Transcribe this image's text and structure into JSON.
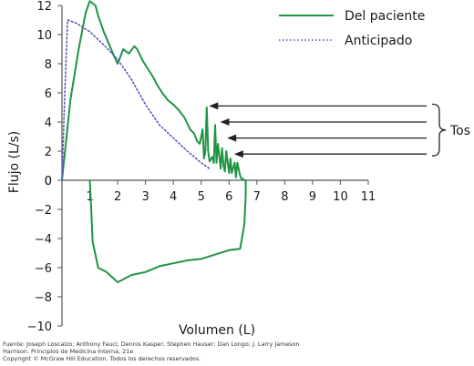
{
  "chart_data": {
    "type": "line",
    "xlabel": "Volumen (L)",
    "ylabel": "Flujo (L/s)",
    "xlim": [
      0,
      11
    ],
    "ylim": [
      -10,
      12
    ],
    "x_ticks": [
      1,
      2,
      3,
      4,
      5,
      6,
      7,
      8,
      9,
      10,
      11
    ],
    "y_ticks": [
      -10,
      -8,
      -6,
      -4,
      -2,
      0,
      2,
      4,
      6,
      8,
      10,
      12
    ],
    "grid": false,
    "legend_position": "top-right",
    "series": [
      {
        "name": "Del paciente",
        "color": "#1f9444",
        "style": "solid",
        "x": [
          0,
          0.3,
          0.6,
          0.85,
          1.0,
          1.2,
          1.3,
          1.5,
          1.7,
          1.9,
          2.0,
          2.2,
          2.4,
          2.6,
          2.7,
          2.9,
          3.1,
          3.3,
          3.4,
          3.6,
          3.8,
          4.0,
          4.2,
          4.4,
          4.6,
          4.75,
          4.85,
          4.95,
          5.05,
          5.1,
          5.15,
          5.2,
          5.25,
          5.3,
          5.4,
          5.45,
          5.5,
          5.55,
          5.6,
          5.7,
          5.75,
          5.8,
          5.85,
          5.9,
          6.0,
          6.05,
          6.1,
          6.2,
          6.25,
          6.3,
          6.4,
          6.45,
          6.5,
          6.55,
          6.6,
          6.6,
          6.55,
          6.4,
          6.0,
          5.5,
          5.0,
          4.5,
          4.0,
          3.5,
          3.0,
          2.5,
          2.0,
          1.6,
          1.3,
          1.1,
          1.05,
          1.0
        ],
        "y": [
          0,
          5.5,
          9.0,
          11.5,
          12.3,
          12.0,
          11.3,
          10.2,
          9.3,
          8.4,
          8.0,
          9.0,
          8.7,
          9.2,
          9.0,
          8.2,
          7.6,
          7.0,
          6.6,
          6.0,
          5.5,
          5.2,
          4.8,
          4.3,
          3.5,
          3.2,
          2.7,
          2.5,
          3.5,
          1.5,
          2.0,
          5.0,
          2.0,
          1.3,
          1.6,
          1.2,
          3.8,
          1.2,
          2.5,
          0.8,
          2.2,
          1.0,
          0.6,
          2.0,
          0.5,
          1.5,
          0.5,
          1.2,
          0.2,
          1.2,
          0.3,
          0.1,
          0.1,
          0.0,
          0.0,
          -1.0,
          -3.0,
          -4.7,
          -4.8,
          -5.1,
          -5.4,
          -5.5,
          -5.7,
          -5.9,
          -6.3,
          -6.5,
          -7.0,
          -6.3,
          -6.0,
          -4.2,
          -2.0,
          0.0
        ]
      },
      {
        "name": "Anticipado",
        "color": "#5c54c4",
        "style": "dotted",
        "x": [
          0,
          0.1,
          0.2,
          0.5,
          1.0,
          1.5,
          2.0,
          2.5,
          3.0,
          3.5,
          4.0,
          4.5,
          5.0,
          5.3
        ],
        "y": [
          0,
          6.0,
          11.0,
          10.8,
          10.2,
          9.3,
          8.3,
          6.9,
          5.2,
          3.8,
          2.9,
          2.0,
          1.2,
          0.8
        ]
      }
    ],
    "annotations": [
      {
        "text": "Tos",
        "type": "bracket",
        "arrows_y": [
          5.1,
          4.0,
          2.9,
          1.8
        ]
      }
    ]
  },
  "footer_lines": [
    "Fuente: Joseph Loscalzo; Anthony Fauci; Dennis Kasper; Stephen Hauser; Dan Longo; J. Larry Jameson",
    "Harrison. Principios de Medicina Interna, 21e",
    "Copyright © McGraw Hill Education. Todos los derechos reservados."
  ]
}
